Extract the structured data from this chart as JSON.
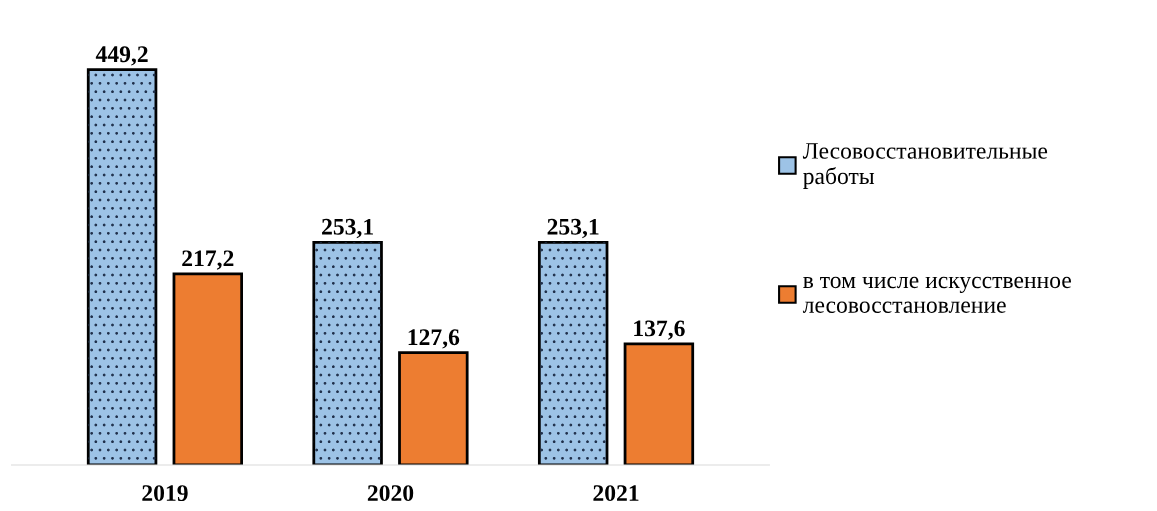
{
  "chart_data": {
    "type": "bar",
    "categories": [
      "2019",
      "2020",
      "2021"
    ],
    "series": [
      {
        "name": "Лесовосстановительные\nработы",
        "color": "#9dc3e6",
        "values": [
          449.2,
          253.1,
          253.1
        ],
        "value_labels": [
          "449,2",
          "253,1",
          "253,1"
        ]
      },
      {
        "name": "в том числе искусственное\nлесовосстановление",
        "color": "#ed7d31",
        "values": [
          217.2,
          127.6,
          137.6
        ],
        "value_labels": [
          "217,2",
          "127,6",
          "137,6"
        ]
      }
    ],
    "legend": "right",
    "grid": false
  }
}
